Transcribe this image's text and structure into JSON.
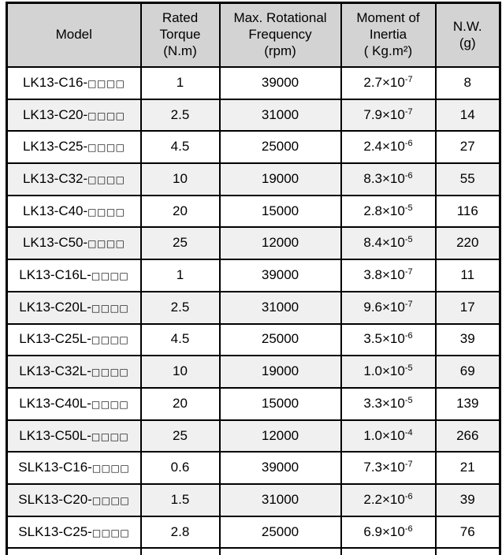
{
  "colors": {
    "border": "#000000",
    "header_bg": "#d3d3d3",
    "row_bg": "#ffffff",
    "row_alt_bg": "#f0f0f0",
    "text": "#000000"
  },
  "table": {
    "columns": [
      {
        "id": "model",
        "label": "Model"
      },
      {
        "id": "torque",
        "label": "Rated\nTorque\n(N.m)"
      },
      {
        "id": "freq",
        "label": "Max. Rotational\nFrequency\n(rpm)"
      },
      {
        "id": "inertia",
        "label": "Moment of\nInertia\n( Kg.m²)"
      },
      {
        "id": "nw",
        "label": "N.W.\n(g)"
      }
    ],
    "rows": [
      {
        "model_prefix": "LK13-C16-",
        "model_boxes": "□□□□",
        "torque": "1",
        "freq": "39000",
        "inertia_base": "2.7×10",
        "inertia_exp": "-7",
        "nw": "8"
      },
      {
        "model_prefix": "LK13-C20-",
        "model_boxes": "□□□□",
        "torque": "2.5",
        "freq": "31000",
        "inertia_base": "7.9×10",
        "inertia_exp": "-7",
        "nw": "14"
      },
      {
        "model_prefix": "LK13-C25-",
        "model_boxes": "□□□□",
        "torque": "4.5",
        "freq": "25000",
        "inertia_base": "2.4×10",
        "inertia_exp": "-6",
        "nw": "27"
      },
      {
        "model_prefix": "LK13-C32-",
        "model_boxes": "□□□□",
        "torque": "10",
        "freq": "19000",
        "inertia_base": "8.3×10",
        "inertia_exp": "-6",
        "nw": "55"
      },
      {
        "model_prefix": "LK13-C40-",
        "model_boxes": "□□□□",
        "torque": "20",
        "freq": "15000",
        "inertia_base": "2.8×10",
        "inertia_exp": "-5",
        "nw": "116"
      },
      {
        "model_prefix": "LK13-C50-",
        "model_boxes": "□□□□",
        "torque": "25",
        "freq": "12000",
        "inertia_base": "8.4×10",
        "inertia_exp": "-5",
        "nw": "220"
      },
      {
        "model_prefix": "LK13-C16L-",
        "model_boxes": "□□□□",
        "torque": "1",
        "freq": "39000",
        "inertia_base": "3.8×10",
        "inertia_exp": "-7",
        "nw": "11"
      },
      {
        "model_prefix": "LK13-C20L-",
        "model_boxes": "□□□□",
        "torque": "2.5",
        "freq": "31000",
        "inertia_base": "9.6×10",
        "inertia_exp": "-7",
        "nw": "17"
      },
      {
        "model_prefix": "LK13-C25L-",
        "model_boxes": "□□□□",
        "torque": "4.5",
        "freq": "25000",
        "inertia_base": "3.5×10",
        "inertia_exp": "-6",
        "nw": "39"
      },
      {
        "model_prefix": "LK13-C32L-",
        "model_boxes": "□□□□",
        "torque": "10",
        "freq": "19000",
        "inertia_base": "1.0×10",
        "inertia_exp": "-5",
        "nw": "69"
      },
      {
        "model_prefix": "LK13-C40L-",
        "model_boxes": "□□□□",
        "torque": "20",
        "freq": "15000",
        "inertia_base": "3.3×10",
        "inertia_exp": "-5",
        "nw": "139"
      },
      {
        "model_prefix": "LK13-C50L-",
        "model_boxes": "□□□□",
        "torque": "25",
        "freq": "12000",
        "inertia_base": "1.0×10",
        "inertia_exp": "-4",
        "nw": "266"
      },
      {
        "model_prefix": "SLK13-C16-",
        "model_boxes": "□□□□",
        "torque": "0.6",
        "freq": "39000",
        "inertia_base": "7.3×10",
        "inertia_exp": "-7",
        "nw": "21"
      },
      {
        "model_prefix": "SLK13-C20-",
        "model_boxes": "□□□□",
        "torque": "1.5",
        "freq": "31000",
        "inertia_base": "2.2×10",
        "inertia_exp": "-6",
        "nw": "39"
      },
      {
        "model_prefix": "SLK13-C25-",
        "model_boxes": "□□□□",
        "torque": "2.8",
        "freq": "25000",
        "inertia_base": "6.9×10",
        "inertia_exp": "-6",
        "nw": "76"
      }
    ]
  }
}
